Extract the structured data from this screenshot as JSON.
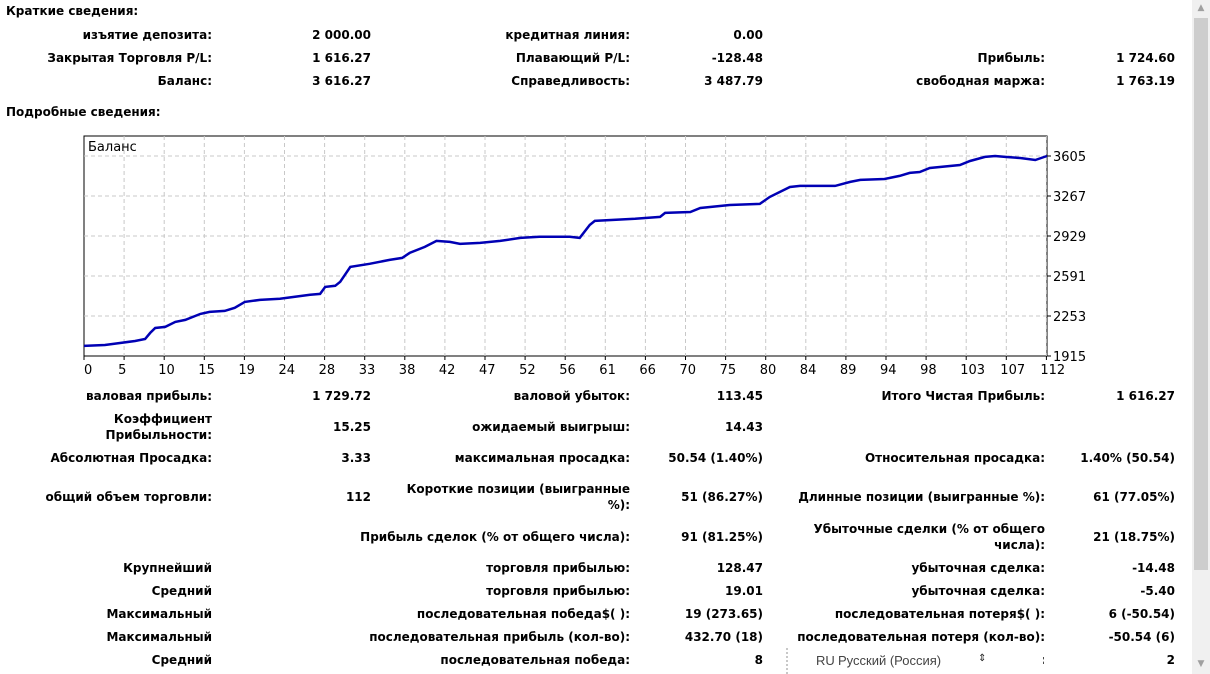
{
  "summary": {
    "title": "Краткие сведения:",
    "rows": [
      [
        [
          "изъятие депозита:",
          "2 000.00"
        ],
        [
          "кредитная линия:",
          "0.00"
        ],
        [
          "",
          ""
        ]
      ],
      [
        [
          "Закрытая Торговля P/L:",
          "1 616.27"
        ],
        [
          "Плавающий P/L:",
          "-128.48"
        ],
        [
          "Прибыль:",
          "1 724.60"
        ]
      ],
      [
        [
          "Баланс:",
          "3 616.27"
        ],
        [
          "Справедливость:",
          "3 487.79"
        ],
        [
          "свободная маржа:",
          "1 763.19"
        ]
      ]
    ]
  },
  "details": {
    "title": "Подробные сведения:",
    "rows": [
      [
        [
          "валовая прибыль:",
          "1 729.72"
        ],
        [
          "валовой убыток:",
          "113.45"
        ],
        [
          "Итого Чистая Прибыль:",
          "1 616.27"
        ]
      ],
      [
        [
          "Коэффициент\nПрибыльности:",
          "15.25"
        ],
        [
          "ожидаемый выигрыш:",
          "14.43"
        ],
        [
          "",
          ""
        ]
      ],
      [
        [
          "Абсолютная Просадка:",
          "3.33"
        ],
        [
          "максимальная просадка:",
          "50.54 (1.40%)"
        ],
        [
          "Относительная просадка:",
          "1.40% (50.54)"
        ]
      ],
      [
        [
          "общий объем торговли:",
          "112"
        ],
        [
          "Короткие позиции (выигранные\n%):",
          "51 (86.27%)"
        ],
        [
          "Длинные позиции (выигранные %):",
          "61 (77.05%)"
        ]
      ],
      [
        [
          "",
          ""
        ],
        [
          "Прибыль сделок (% от общего числа):",
          "91 (81.25%)"
        ],
        [
          "Убыточные сделки (% от общего\nчисла):",
          "21 (18.75%)"
        ]
      ],
      [
        [
          "Крупнейший",
          ""
        ],
        [
          "торговля прибылью:",
          "128.47"
        ],
        [
          "убыточная сделка:",
          "-14.48"
        ]
      ],
      [
        [
          "Средний",
          ""
        ],
        [
          "торговля прибылью:",
          "19.01"
        ],
        [
          "убыточная сделка:",
          "-5.40"
        ]
      ],
      [
        [
          "Максимальный",
          ""
        ],
        [
          "последовательная победа$( ):",
          "19 (273.65)"
        ],
        [
          "последовательная потеря$( ):",
          "6 (-50.54)"
        ]
      ],
      [
        [
          "Максимальный",
          ""
        ],
        [
          "последовательная прибыль (кол-во):",
          "432.70 (18)"
        ],
        [
          "последовательная потеря (кол-во):",
          "-50.54 (6)"
        ]
      ],
      [
        [
          "Средний",
          ""
        ],
        [
          "последовательная победа:",
          "8"
        ],
        [
          "потеря:",
          "2"
        ]
      ]
    ]
  },
  "language_bar": {
    "code": "RU",
    "name": "Русский (Россия)"
  },
  "chart_data": {
    "type": "line",
    "title": "Баланс",
    "xlabel": "",
    "ylabel": "",
    "xlim": [
      0,
      115
    ],
    "ylim": [
      1915,
      3605
    ],
    "grid": true,
    "x_ticks": [
      0,
      5,
      10,
      15,
      19,
      24,
      28,
      33,
      38,
      42,
      47,
      52,
      56,
      61,
      66,
      70,
      75,
      80,
      84,
      89,
      94,
      98,
      103,
      107,
      112
    ],
    "y_ticks": [
      1915,
      2253,
      2591,
      2929,
      3267,
      3605
    ],
    "series": [
      {
        "name": "Баланс",
        "color": "#0000b4",
        "points": [
          [
            0,
            2000
          ],
          [
            2.5,
            2008
          ],
          [
            4.3,
            2025
          ],
          [
            6.1,
            2042
          ],
          [
            7.3,
            2059
          ],
          [
            7.9,
            2110
          ],
          [
            8.5,
            2152
          ],
          [
            9.7,
            2161
          ],
          [
            10.9,
            2203
          ],
          [
            12.1,
            2220
          ],
          [
            13.9,
            2271
          ],
          [
            15,
            2288
          ],
          [
            16.8,
            2296
          ],
          [
            18,
            2322
          ],
          [
            19.2,
            2372
          ],
          [
            21,
            2389
          ],
          [
            23.4,
            2398
          ],
          [
            25.2,
            2415
          ],
          [
            27,
            2432
          ],
          [
            28.2,
            2440
          ],
          [
            28.8,
            2499
          ],
          [
            30,
            2508
          ],
          [
            30.6,
            2542
          ],
          [
            31.8,
            2668
          ],
          [
            34.1,
            2694
          ],
          [
            36.5,
            2727
          ],
          [
            38,
            2744
          ],
          [
            38.9,
            2786
          ],
          [
            40.7,
            2837
          ],
          [
            42.1,
            2888
          ],
          [
            43.7,
            2879
          ],
          [
            44.9,
            2862
          ],
          [
            47.3,
            2871
          ],
          [
            49.7,
            2888
          ],
          [
            52.1,
            2913
          ],
          [
            54.4,
            2922
          ],
          [
            58,
            2922
          ],
          [
            59.2,
            2913
          ],
          [
            60.4,
            3023
          ],
          [
            61,
            3057
          ],
          [
            65.8,
            3074
          ],
          [
            68.8,
            3090
          ],
          [
            69.4,
            3124
          ],
          [
            72.4,
            3132
          ],
          [
            73.6,
            3166
          ],
          [
            77.1,
            3191
          ],
          [
            80.7,
            3200
          ],
          [
            81.9,
            3259
          ],
          [
            84.3,
            3343
          ],
          [
            85.5,
            3352
          ],
          [
            89.7,
            3352
          ],
          [
            91.5,
            3386
          ],
          [
            92.7,
            3403
          ],
          [
            95.6,
            3411
          ],
          [
            97.4,
            3437
          ],
          [
            98.6,
            3462
          ],
          [
            99.8,
            3470
          ],
          [
            101,
            3504
          ],
          [
            104.6,
            3529
          ],
          [
            105.8,
            3563
          ],
          [
            107.6,
            3597
          ],
          [
            108.8,
            3605
          ],
          [
            110,
            3597
          ],
          [
            111.8,
            3588
          ],
          [
            113.6,
            3571
          ],
          [
            115,
            3605
          ]
        ]
      }
    ]
  }
}
